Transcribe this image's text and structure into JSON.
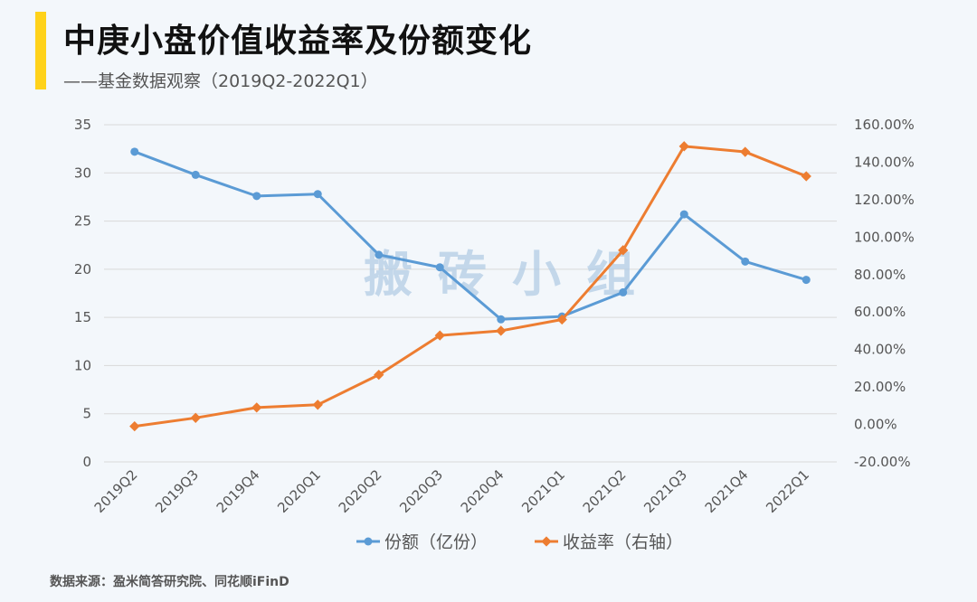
{
  "header": {
    "title": "中庚小盘价值收益率及份额变化",
    "subtitle": "——基金数据观察（2019Q2-2022Q1）"
  },
  "footer": {
    "source": "数据来源：盈米简答研究院、同花顺iFinD"
  },
  "watermark": "搬砖小组",
  "colors": {
    "share": "#5b9bd5",
    "return": "#ed7d31",
    "grid": "#d9d9d9",
    "accent": "#ffd21a"
  },
  "chart_data": {
    "type": "line",
    "title": "中庚小盘价值收益率及份额变化",
    "categories": [
      "2019Q2",
      "2019Q3",
      "2019Q4",
      "2020Q1",
      "2020Q2",
      "2020Q3",
      "2020Q4",
      "2021Q1",
      "2021Q2",
      "2021Q3",
      "2021Q4",
      "2022Q1"
    ],
    "left_axis": {
      "min": 0,
      "max": 35,
      "step": 5,
      "ticks": [
        "0",
        "5",
        "10",
        "15",
        "20",
        "25",
        "30",
        "35"
      ]
    },
    "right_axis": {
      "min": -20,
      "max": 160,
      "step": 20,
      "ticks": [
        "-20.00%",
        "0.00%",
        "20.00%",
        "40.00%",
        "60.00%",
        "80.00%",
        "100.00%",
        "120.00%",
        "140.00%",
        "160.00%"
      ]
    },
    "series": [
      {
        "name": "份额（亿份）",
        "axis": "left",
        "values": [
          32.2,
          29.8,
          27.6,
          27.8,
          21.5,
          20.2,
          14.8,
          15.1,
          17.6,
          25.7,
          20.8,
          18.9
        ]
      },
      {
        "name": "收益率（右轴）",
        "axis": "right",
        "values": [
          -1.0,
          3.5,
          9.0,
          10.5,
          26.5,
          47.5,
          50.0,
          56.0,
          93.0,
          148.5,
          145.5,
          132.5
        ]
      }
    ],
    "legend": [
      "份额（亿份）",
      "收益率（右轴）"
    ],
    "grid": true,
    "legend_position": "bottom"
  }
}
